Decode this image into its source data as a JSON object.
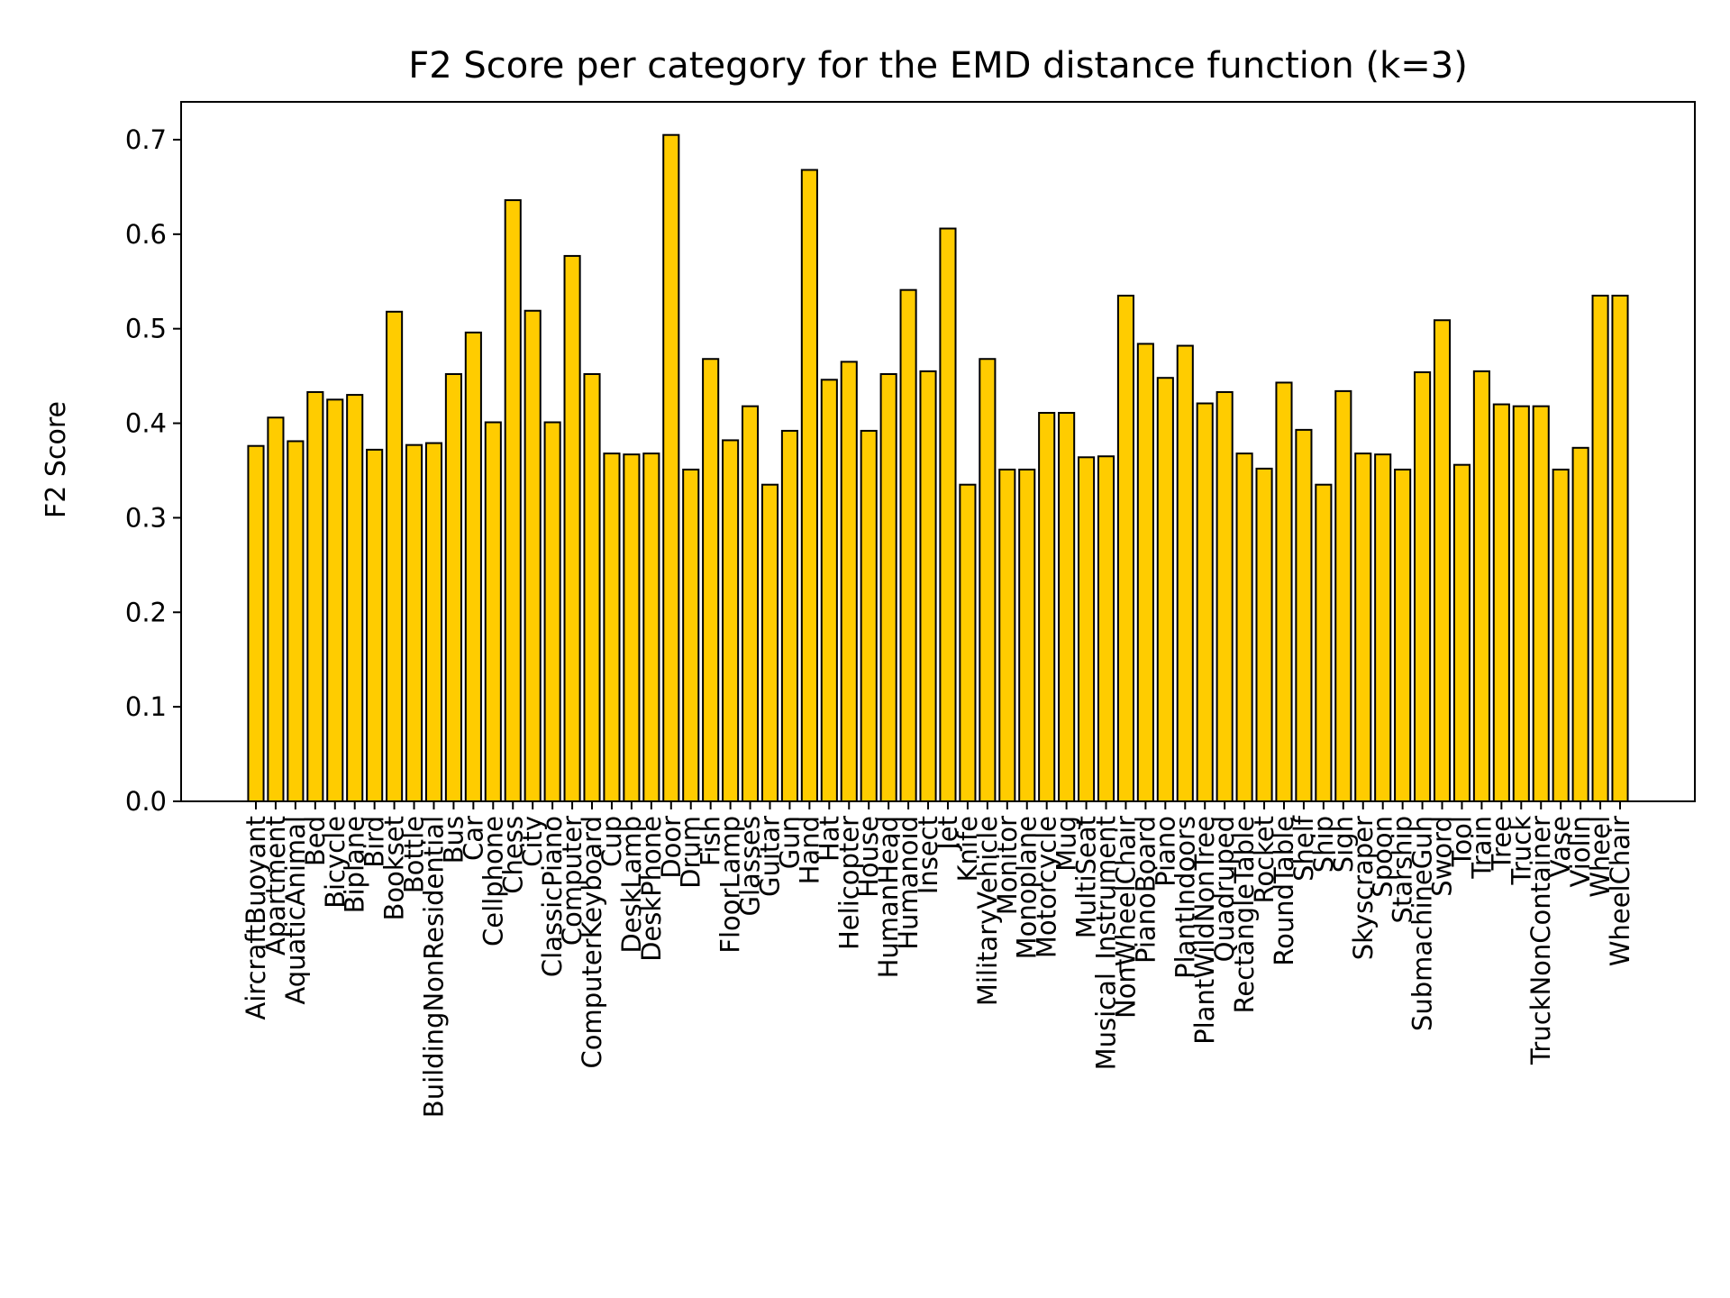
{
  "chart_data": {
    "type": "bar",
    "title": "F2 Score per category for the EMD distance function (k=3)",
    "xlabel": "",
    "ylabel": "F2 Score",
    "ylim": [
      0,
      0.74
    ],
    "yticks": [
      0.0,
      0.1,
      0.2,
      0.3,
      0.4,
      0.5,
      0.6,
      0.7
    ],
    "ytick_labels": [
      "0.0",
      "0.1",
      "0.2",
      "0.3",
      "0.4",
      "0.5",
      "0.6",
      "0.7"
    ],
    "grid": false,
    "colors": {
      "bar_fill": "#ffcc00",
      "bar_edge": "#000000",
      "axis": "#000000"
    },
    "categories": [
      "AircraftBuoyant",
      "Apartment",
      "AquaticAnimal",
      "Bed",
      "Bicycle",
      "Biplane",
      "Bird",
      "Bookset",
      "Bottle",
      "BuildingNonResidential",
      "Bus",
      "Car",
      "Cellphone",
      "Chess",
      "City",
      "ClassicPiano",
      "Computer",
      "ComputerKeyboard",
      "Cup",
      "DeskLamp",
      "DeskPhone",
      "Door",
      "Drum",
      "Fish",
      "FloorLamp",
      "Glasses",
      "Guitar",
      "Gun",
      "Hand",
      "Hat",
      "Helicopter",
      "House",
      "HumanHead",
      "Humanoid",
      "Insect",
      "Jet",
      "Knife",
      "MilitaryVehicle",
      "Monitor",
      "Monoplane",
      "Motorcycle",
      "Mug",
      "MultiSeat",
      "Musical_Instrument",
      "NonWheelChair",
      "PianoBoard",
      "Piano",
      "PlantIndoors",
      "PlantWildNonTree",
      "Quadruped",
      "RectangleTable",
      "Rocket",
      "RoundTable",
      "Shelf",
      "Ship",
      "Sign",
      "Skyscraper",
      "Spoon",
      "Starship",
      "SubmachineGun",
      "Sword",
      "Tool",
      "Train",
      "Tree",
      "Truck",
      "TruckNonContainer",
      "Vase",
      "Violin",
      "Wheel",
      "WheelChair"
    ],
    "category_labels": [
      "AircraftBuoyant",
      "Apartment",
      "AquaticAnimal",
      "Bed",
      "Bicycle",
      "Biplane",
      "Bird",
      "Bookset",
      "Bottle",
      "BuildingNonResidential",
      "Bus",
      "Car",
      "Cellphone",
      "Chess",
      "City",
      "ClassicPiano",
      "Computer",
      "ComputerKeyboard",
      "Cup",
      "DeskLamp",
      "DeskPhone",
      "Door",
      "Drum",
      "Fish",
      "FloorLamp",
      "Glasses",
      "Guitar",
      "Gun",
      "Hand",
      "Hat",
      "Helicopter",
      "House",
      "HumanHead",
      "Humanoid",
      "Insect",
      "Jet",
      "Knife",
      "MilitaryVehicle",
      "Monitor",
      "Monoplane",
      "Motorcycle",
      "Mug",
      "MultiSeat",
      "Musical_Instrument",
      "NonWheelChair",
      "PianoBoard",
      "Piano",
      "PlantIndoors",
      "PlantWildNonTree",
      "Quadruped",
      "RectangleTable",
      "Rocket",
      "RoundTable",
      "Shelf",
      "Ship",
      "Sign",
      "Skyscraper",
      "Spoon",
      "Starship",
      "SubmachineGun",
      "Sword",
      "Tool",
      "Train",
      "Tree",
      "Truck",
      "TruckNonContainer",
      "Vase",
      "Violin",
      "Wheel",
      "WheelChair"
    ],
    "values": [
      0.376,
      0.406,
      0.381,
      0.433,
      0.425,
      0.43,
      0.372,
      0.518,
      0.377,
      0.379,
      0.452,
      0.496,
      0.401,
      0.636,
      0.519,
      0.401,
      0.577,
      0.452,
      0.368,
      0.367,
      0.368,
      0.705,
      0.351,
      0.468,
      0.382,
      0.418,
      0.335,
      0.392,
      0.668,
      0.446,
      0.465,
      0.392,
      0.452,
      0.541,
      0.455,
      0.606,
      0.335,
      0.468,
      0.351,
      0.351,
      0.411,
      0.411,
      0.364,
      0.365,
      0.535,
      0.484,
      0.448,
      0.482,
      0.421,
      0.433,
      0.368,
      0.352,
      0.443,
      0.393,
      0.335,
      0.434,
      0.368,
      0.367,
      0.351,
      0.454,
      0.509,
      0.356,
      0.455,
      0.42,
      0.418,
      0.418,
      0.351,
      0.374,
      0.535,
      0.535
    ]
  }
}
